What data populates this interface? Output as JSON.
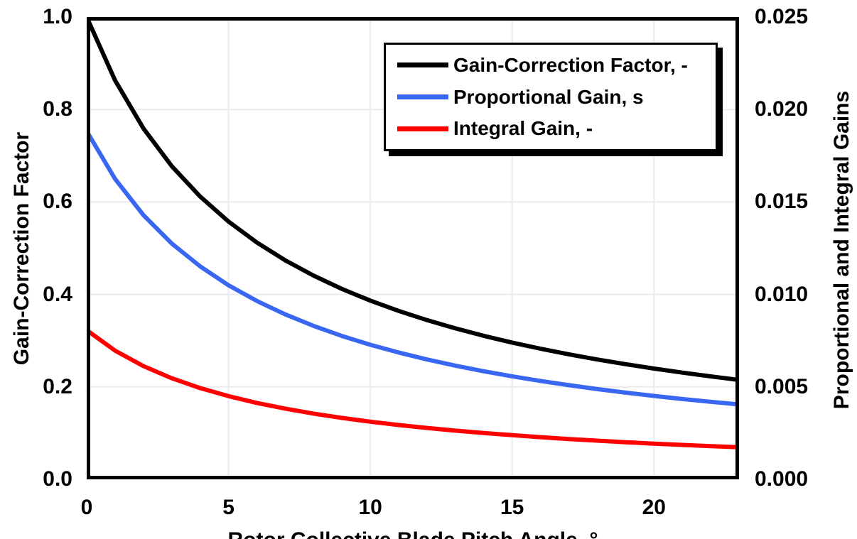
{
  "chart_data": {
    "type": "line",
    "title": "",
    "background": "#FFFFFF",
    "frame_color": "#000000",
    "x_axis": {
      "title": "Rotor Collective Blade Pitch Angle, °",
      "range": [
        0,
        23
      ],
      "ticks": [
        "0",
        "5",
        "10",
        "15",
        "20"
      ],
      "tick_values": [
        0,
        5,
        10,
        15,
        20
      ]
    },
    "y_axis_left": {
      "title": "Gain-Correction Factor",
      "range": [
        0,
        1
      ],
      "ticks": [
        "1.0",
        "0.8",
        "0.6",
        "0.4",
        "0.2",
        "0.0"
      ],
      "tick_values": [
        1.0,
        0.8,
        0.6,
        0.4,
        0.2,
        0.0
      ]
    },
    "y_axis_right": {
      "title": "Proportional and Integral Gains",
      "range": [
        0,
        0.025
      ],
      "ticks": [
        "0.025",
        "0.020",
        "0.015",
        "0.010",
        "0.005",
        "0.000"
      ],
      "tick_values": [
        0.025,
        0.02,
        0.015,
        0.01,
        0.005,
        0.0
      ]
    },
    "gridlines": {
      "x": [
        5,
        10,
        15,
        20
      ],
      "y_left": [
        0.2,
        0.4,
        0.6,
        0.8
      ],
      "color": "#EBEBEE"
    },
    "legend_position": "top-right-inside",
    "x": [
      0,
      1,
      2,
      3,
      4,
      5,
      6,
      7,
      8,
      9,
      10,
      11,
      12,
      13,
      14,
      15,
      16,
      17,
      18,
      19,
      20,
      21,
      22,
      23
    ],
    "series": [
      {
        "name": "Gain-Correction Factor, -",
        "axis": "left",
        "color": "#000000",
        "values": [
          1.0,
          0.8631,
          0.7591,
          0.6775,
          0.6117,
          0.5576,
          0.5123,
          0.4738,
          0.4407,
          0.4118,
          0.3866,
          0.3643,
          0.3444,
          0.3265,
          0.3104,
          0.2959,
          0.2826,
          0.2705,
          0.2593,
          0.2491,
          0.2396,
          0.2308,
          0.2227,
          0.2151
        ]
      },
      {
        "name": "Proportional Gain, s",
        "axis": "right",
        "color": "#3A67F2",
        "values": [
          0.018827,
          0.016249,
          0.014291,
          0.012755,
          0.011516,
          0.010497,
          0.009645,
          0.00892,
          0.008297,
          0.007753,
          0.007278,
          0.006859,
          0.006484,
          0.006147,
          0.005843,
          0.005571,
          0.005321,
          0.005093,
          0.004882,
          0.004689,
          0.004511,
          0.004345,
          0.004193,
          0.00405
        ]
      },
      {
        "name": "Integral Gain, -",
        "axis": "right",
        "color": "#FF0000",
        "values": [
          0.008069,
          0.006964,
          0.006125,
          0.005467,
          0.004936,
          0.004499,
          0.004134,
          0.003823,
          0.003556,
          0.003323,
          0.003119,
          0.002939,
          0.002779,
          0.002634,
          0.002504,
          0.002388,
          0.00228,
          0.002183,
          0.002092,
          0.00201,
          0.001933,
          0.001862,
          0.001797,
          0.001736
        ]
      }
    ]
  }
}
